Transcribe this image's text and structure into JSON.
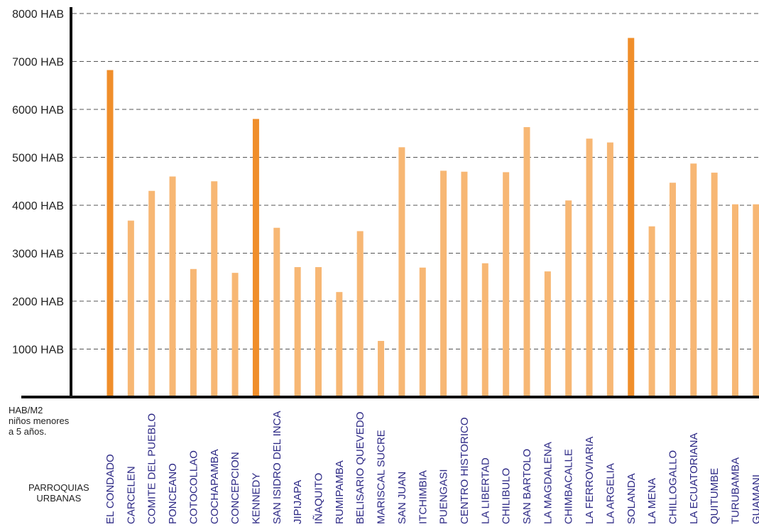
{
  "chart_data": {
    "type": "bar",
    "title": "",
    "xlabel": "",
    "ylabel": "",
    "ylim": [
      0,
      8000
    ],
    "y_ticks": [
      "1000 HAB",
      "2000 HAB",
      "3000 HAB",
      "4000 HAB",
      "5000 HAB",
      "6000 HAB",
      "7000 HAB",
      "8000 HAB"
    ],
    "y_tick_values": [
      1000,
      2000,
      3000,
      4000,
      5000,
      6000,
      7000,
      8000
    ],
    "grid": "horizontal-dashed",
    "colors": {
      "normal": "#f7b774",
      "highlight": "#f08e2a",
      "axis": "#111111",
      "grid": "#555555",
      "category_text": "#2e2a86"
    },
    "categories": [
      "EL CONDADO",
      "CARCELEN",
      "COMITE DEL PUEBLO",
      "PONCEANO",
      "COTOCOLLAO",
      "COCHAPAMBA",
      "CONCEPCION",
      "KENNEDY",
      "SAN ISIDRO DEL INCA",
      "JIPIJAPA",
      "IÑAQUITO",
      "RUMIPAMBA",
      "BELISARIO QUEVEDO",
      "MARISCAL SUCRE",
      "SAN JUAN",
      "ITCHIMBIA",
      "PUENGASI",
      "CENTRO HISTORICO",
      "LA LIBERTAD",
      "CHILIBULO",
      "SAN BARTOLO",
      "LA MAGDALENA",
      "CHIMBACALLE",
      "LA FERROVIARIA",
      "LA ARGELIA",
      "SOLANDA",
      "LA MENA",
      "CHILLOGALLO",
      "LA ECUATORIANA",
      "QUITUMBE",
      "TURUBAMBA",
      "GUAMANI"
    ],
    "values": [
      6820,
      3680,
      4300,
      4600,
      2670,
      4500,
      2590,
      5800,
      3530,
      2710,
      2710,
      2190,
      3460,
      1170,
      5210,
      2700,
      4720,
      4700,
      2790,
      4690,
      5630,
      2620,
      4100,
      5390,
      5310,
      7490,
      3560,
      4470,
      4870,
      4680,
      4020,
      4020
    ],
    "highlighted": [
      "EL CONDADO",
      "KENNEDY",
      "SOLANDA"
    ]
  },
  "labels": {
    "axis_caption": [
      "HAB/M2",
      "niños menores",
      "a 5 años."
    ],
    "group_caption": [
      "PARROQUIAS",
      "URBANAS"
    ]
  }
}
